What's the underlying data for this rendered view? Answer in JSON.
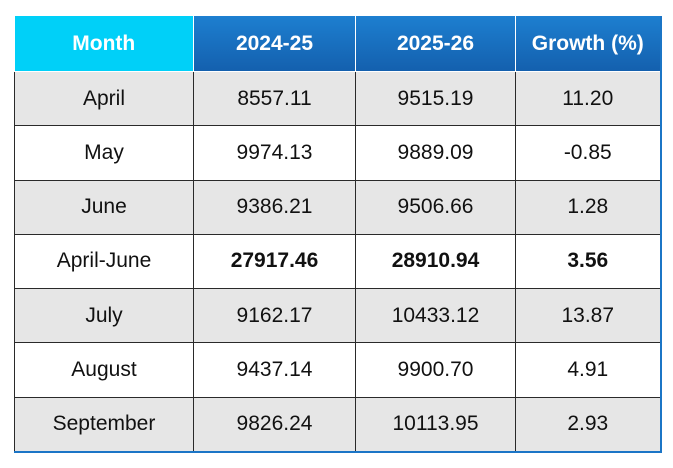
{
  "table": {
    "headers": [
      "Month",
      "2024-25",
      "2025-26",
      "Growth (%)"
    ],
    "rows": [
      [
        "April",
        "8557.11",
        "9515.19",
        "11.20"
      ],
      [
        "May",
        "9974.13",
        "9889.09",
        "-0.85"
      ],
      [
        "June",
        "9386.21",
        "9506.66",
        "1.28"
      ],
      [
        "April-June",
        "27917.46",
        "28910.94",
        "3.56"
      ],
      [
        "July",
        "9162.17",
        "10433.12",
        "13.87"
      ],
      [
        "August",
        "9437.14",
        "9900.70",
        "4.91"
      ],
      [
        "September",
        "9826.24",
        "10113.95",
        "2.93"
      ]
    ]
  }
}
